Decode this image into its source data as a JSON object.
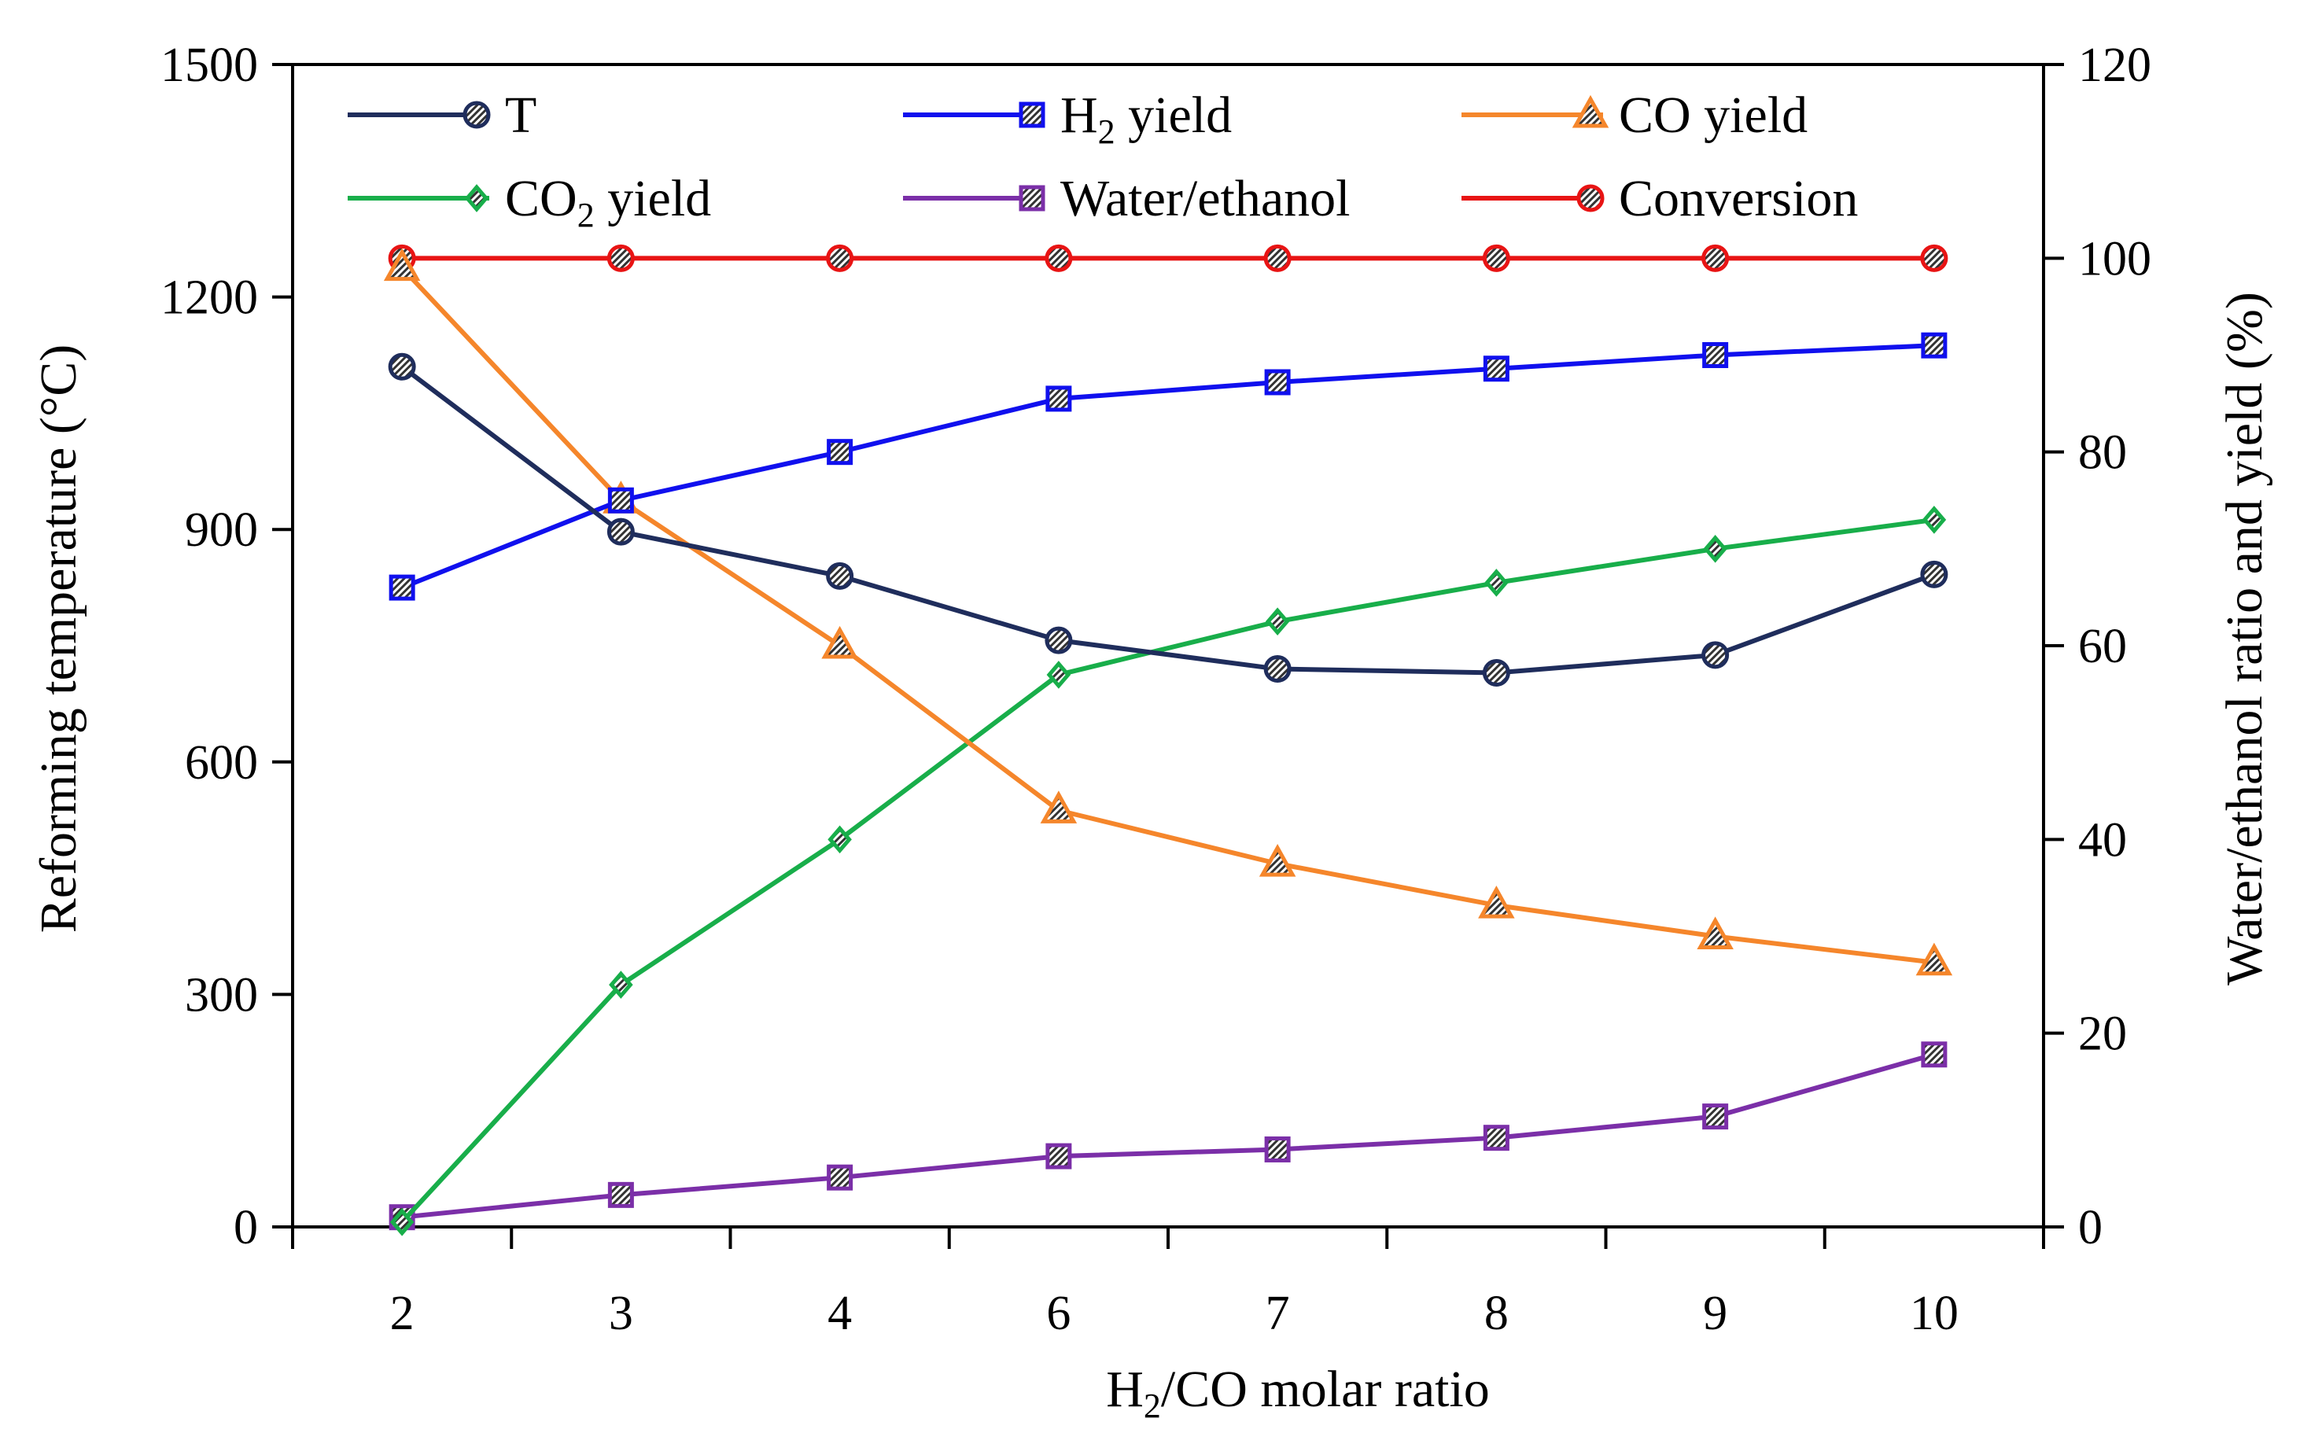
{
  "chart_data": {
    "type": "line",
    "categories": [
      "2",
      "3",
      "4",
      "6",
      "7",
      "8",
      "9",
      "10"
    ],
    "xlabel": "H2/CO molar ratio",
    "xlabel_parts": {
      "a": "H",
      "sub": "2",
      "b": "/CO molar ratio"
    },
    "ylabel_left": "Reforming temperature (°C)",
    "ylabel_right": "Water/ethanol ratio and yield (%)",
    "ylim_left": [
      0,
      1500
    ],
    "ylim_right": [
      0,
      120
    ],
    "yticks_left": [
      "0",
      "300",
      "600",
      "900",
      "1200",
      "1500"
    ],
    "yticks_right": [
      "0",
      "20",
      "40",
      "60",
      "80",
      "100",
      "120"
    ],
    "grid": false,
    "legend_position": "top",
    "series": [
      {
        "key": "T",
        "name": "T",
        "label": {
          "a": "T",
          "sub": "",
          "b": ""
        },
        "axis": "left",
        "color": "#1F2D5C",
        "marker": "circle",
        "values": [
          1110,
          897,
          840,
          757,
          720,
          715,
          738,
          842
        ]
      },
      {
        "key": "H2",
        "name": "H2 yield",
        "label": {
          "a": "H",
          "sub": "2",
          "b": " yield"
        },
        "axis": "right",
        "color": "#1010EE",
        "marker": "square",
        "values": [
          66,
          75,
          80,
          85.5,
          87.2,
          88.6,
          90,
          91
        ]
      },
      {
        "key": "CO",
        "name": "CO yield",
        "label": {
          "a": "CO yield",
          "sub": "",
          "b": ""
        },
        "axis": "right",
        "color": "#F5862B",
        "marker": "triangle",
        "values": [
          99,
          75,
          60,
          43,
          37.5,
          33.2,
          30,
          27.3
        ]
      },
      {
        "key": "CO2",
        "name": "CO2 yield",
        "label": {
          "a": "CO",
          "sub": "2",
          "b": " yield"
        },
        "axis": "right",
        "color": "#18AE4A",
        "marker": "diamond",
        "values": [
          0.5,
          25,
          40,
          57,
          62.5,
          66.5,
          70,
          73
        ]
      },
      {
        "key": "WE",
        "name": "Water/ethanol",
        "label": {
          "a": "Water/ethanol",
          "sub": "",
          "b": ""
        },
        "axis": "right",
        "color": "#7B2FA8",
        "marker": "square",
        "values": [
          1,
          3.3,
          5.1,
          7.3,
          8,
          9.2,
          11.4,
          17.8
        ]
      },
      {
        "key": "CONV",
        "name": "Conversion",
        "label": {
          "a": "Conversion",
          "sub": "",
          "b": ""
        },
        "axis": "right",
        "color": "#E81414",
        "marker": "circle",
        "values": [
          100,
          100,
          100,
          100,
          100,
          100,
          100,
          100
        ]
      }
    ]
  }
}
